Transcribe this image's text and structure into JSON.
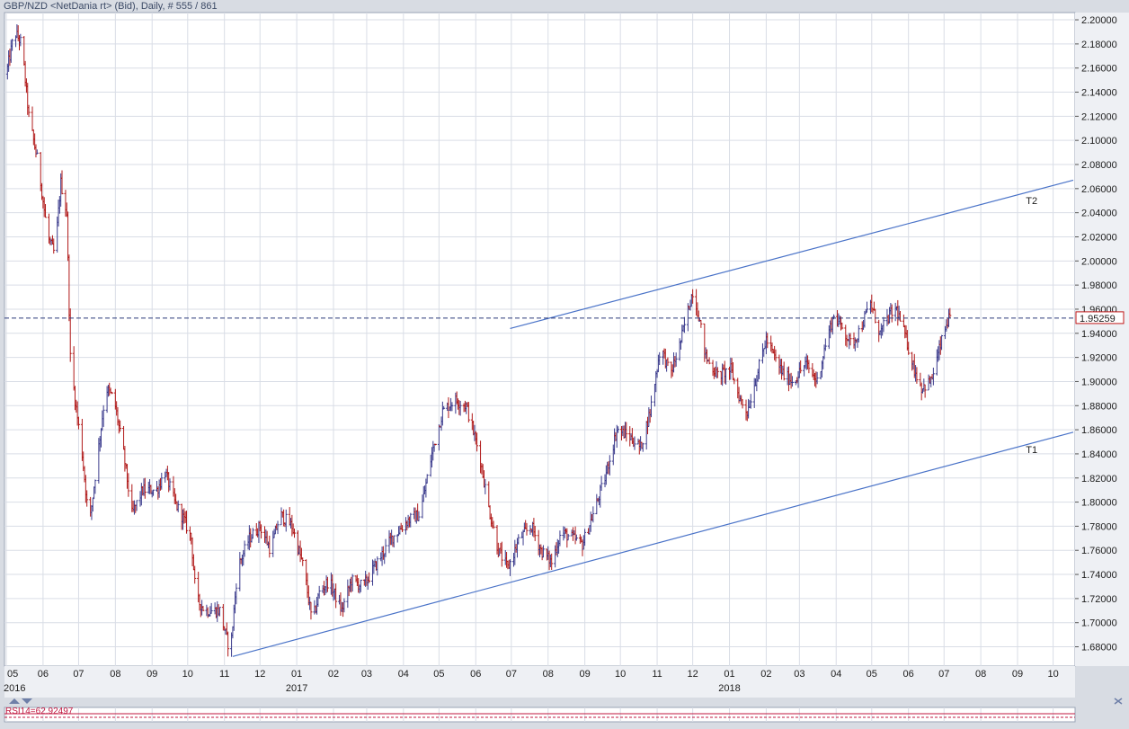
{
  "header": {
    "title": "GBP/NZD <NetDania rt> (Bid), Daily, # 555 / 861"
  },
  "colors": {
    "background": "#ffffff",
    "grid": "#d9dde6",
    "up_bar": "#3a3a8c",
    "down_bar": "#b01818",
    "trendline": "#4a73c8",
    "current_price_line": "#2b3a7a",
    "price_badge_border": "#c01818",
    "rsi_line": "#c01840",
    "axis_text": "#1c1c1c",
    "frame": "#9aa3b5"
  },
  "chart_data": {
    "type": "ohlc",
    "title": "GBP/NZD <NetDania rt> (Bid), Daily, # 555 / 861",
    "ylim": [
      1.664,
      2.206
    ],
    "x_range": [
      "2016-05-01",
      "2018-10-18"
    ],
    "grid": true,
    "y_ticks": [
      "1.68000",
      "1.70000",
      "1.72000",
      "1.74000",
      "1.76000",
      "1.78000",
      "1.80000",
      "1.82000",
      "1.84000",
      "1.86000",
      "1.88000",
      "1.90000",
      "1.92000",
      "1.94000",
      "1.96000",
      "1.98000",
      "2.00000",
      "2.02000",
      "2.04000",
      "2.06000",
      "2.08000",
      "2.10000",
      "2.12000",
      "2.14000",
      "2.16000",
      "2.18000",
      "2.20000"
    ],
    "x_month_ticks": [
      {
        "label": "05",
        "date": "2016-05-01"
      },
      {
        "label": "06",
        "date": "2016-06-01"
      },
      {
        "label": "07",
        "date": "2016-07-01"
      },
      {
        "label": "08",
        "date": "2016-08-01"
      },
      {
        "label": "09",
        "date": "2016-09-01"
      },
      {
        "label": "10",
        "date": "2016-10-01"
      },
      {
        "label": "11",
        "date": "2016-11-01"
      },
      {
        "label": "12",
        "date": "2016-12-01"
      },
      {
        "label": "01",
        "date": "2017-01-01"
      },
      {
        "label": "02",
        "date": "2017-02-01"
      },
      {
        "label": "03",
        "date": "2017-03-01"
      },
      {
        "label": "04",
        "date": "2017-04-01"
      },
      {
        "label": "05",
        "date": "2017-05-01"
      },
      {
        "label": "06",
        "date": "2017-06-01"
      },
      {
        "label": "07",
        "date": "2017-07-01"
      },
      {
        "label": "08",
        "date": "2017-08-01"
      },
      {
        "label": "09",
        "date": "2017-09-01"
      },
      {
        "label": "10",
        "date": "2017-10-01"
      },
      {
        "label": "11",
        "date": "2017-11-01"
      },
      {
        "label": "12",
        "date": "2017-12-01"
      },
      {
        "label": "01",
        "date": "2018-01-01"
      },
      {
        "label": "02",
        "date": "2018-02-01"
      },
      {
        "label": "03",
        "date": "2018-03-01"
      },
      {
        "label": "04",
        "date": "2018-04-01"
      },
      {
        "label": "05",
        "date": "2018-05-01"
      },
      {
        "label": "06",
        "date": "2018-06-01"
      },
      {
        "label": "07",
        "date": "2018-07-01"
      },
      {
        "label": "08",
        "date": "2018-08-01"
      },
      {
        "label": "09",
        "date": "2018-09-01"
      },
      {
        "label": "10",
        "date": "2018-10-01"
      }
    ],
    "x_year_labels": [
      {
        "label": "2016",
        "date": "2016-05-01"
      },
      {
        "label": "2017",
        "date": "2017-01-01"
      },
      {
        "label": "2018",
        "date": "2018-01-01"
      }
    ],
    "price_path": [
      [
        "2016-05-01",
        2.155
      ],
      [
        "2016-05-08",
        2.19
      ],
      [
        "2016-05-14",
        2.18
      ],
      [
        "2016-05-20",
        2.12
      ],
      [
        "2016-05-28",
        2.08
      ],
      [
        "2016-06-05",
        2.02
      ],
      [
        "2016-06-11",
        2.005
      ],
      [
        "2016-06-16",
        2.065
      ],
      [
        "2016-06-21",
        2.04
      ],
      [
        "2016-06-24",
        1.92
      ],
      [
        "2016-06-28",
        1.885
      ],
      [
        "2016-07-04",
        1.84
      ],
      [
        "2016-07-10",
        1.78
      ],
      [
        "2016-07-16",
        1.83
      ],
      [
        "2016-07-24",
        1.895
      ],
      [
        "2016-07-31",
        1.885
      ],
      [
        "2016-08-08",
        1.84
      ],
      [
        "2016-08-15",
        1.79
      ],
      [
        "2016-08-24",
        1.81
      ],
      [
        "2016-09-05",
        1.81
      ],
      [
        "2016-09-12",
        1.825
      ],
      [
        "2016-09-20",
        1.8
      ],
      [
        "2016-09-28",
        1.785
      ],
      [
        "2016-10-04",
        1.77
      ],
      [
        "2016-10-08",
        1.72
      ],
      [
        "2016-10-16",
        1.71
      ],
      [
        "2016-10-28",
        1.71
      ],
      [
        "2016-11-06",
        1.675
      ],
      [
        "2016-11-12",
        1.745
      ],
      [
        "2016-11-22",
        1.77
      ],
      [
        "2016-12-01",
        1.78
      ],
      [
        "2016-12-10",
        1.76
      ],
      [
        "2016-12-18",
        1.79
      ],
      [
        "2016-12-28",
        1.78
      ],
      [
        "2017-01-07",
        1.745
      ],
      [
        "2017-01-14",
        1.7
      ],
      [
        "2017-01-20",
        1.725
      ],
      [
        "2017-01-28",
        1.735
      ],
      [
        "2017-02-08",
        1.71
      ],
      [
        "2017-02-16",
        1.735
      ],
      [
        "2017-02-26",
        1.73
      ],
      [
        "2017-03-10",
        1.75
      ],
      [
        "2017-03-22",
        1.77
      ],
      [
        "2017-04-05",
        1.785
      ],
      [
        "2017-04-15",
        1.79
      ],
      [
        "2017-04-25",
        1.84
      ],
      [
        "2017-05-04",
        1.875
      ],
      [
        "2017-05-14",
        1.885
      ],
      [
        "2017-05-24",
        1.88
      ],
      [
        "2017-06-04",
        1.84
      ],
      [
        "2017-06-12",
        1.795
      ],
      [
        "2017-06-20",
        1.76
      ],
      [
        "2017-06-28",
        1.745
      ],
      [
        "2017-07-08",
        1.77
      ],
      [
        "2017-07-18",
        1.78
      ],
      [
        "2017-07-26",
        1.76
      ],
      [
        "2017-08-04",
        1.75
      ],
      [
        "2017-08-12",
        1.775
      ],
      [
        "2017-08-22",
        1.77
      ],
      [
        "2017-08-30",
        1.765
      ],
      [
        "2017-09-08",
        1.79
      ],
      [
        "2017-09-18",
        1.82
      ],
      [
        "2017-09-28",
        1.86
      ],
      [
        "2017-10-08",
        1.855
      ],
      [
        "2017-10-18",
        1.845
      ],
      [
        "2017-10-26",
        1.875
      ],
      [
        "2017-11-04",
        1.93
      ],
      [
        "2017-11-12",
        1.905
      ],
      [
        "2017-11-20",
        1.93
      ],
      [
        "2017-11-26",
        1.955
      ],
      [
        "2017-12-01",
        1.975
      ],
      [
        "2017-12-06",
        1.955
      ],
      [
        "2017-12-12",
        1.92
      ],
      [
        "2017-12-22",
        1.905
      ],
      [
        "2018-01-02",
        1.91
      ],
      [
        "2018-01-10",
        1.885
      ],
      [
        "2018-01-16",
        1.875
      ],
      [
        "2018-01-24",
        1.905
      ],
      [
        "2018-02-01",
        1.935
      ],
      [
        "2018-02-08",
        1.92
      ],
      [
        "2018-02-16",
        1.905
      ],
      [
        "2018-02-24",
        1.9
      ],
      [
        "2018-03-06",
        1.915
      ],
      [
        "2018-03-16",
        1.9
      ],
      [
        "2018-03-24",
        1.935
      ],
      [
        "2018-03-30",
        1.955
      ],
      [
        "2018-04-06",
        1.945
      ],
      [
        "2018-04-14",
        1.93
      ],
      [
        "2018-04-22",
        1.945
      ],
      [
        "2018-04-30",
        1.965
      ],
      [
        "2018-05-08",
        1.94
      ],
      [
        "2018-05-16",
        1.955
      ],
      [
        "2018-05-22",
        1.96
      ],
      [
        "2018-05-30",
        1.935
      ],
      [
        "2018-06-06",
        1.91
      ],
      [
        "2018-06-12",
        1.895
      ],
      [
        "2018-06-20",
        1.9
      ],
      [
        "2018-06-28",
        1.93
      ],
      [
        "2018-07-04",
        1.95
      ],
      [
        "2018-07-06",
        1.9526
      ]
    ],
    "current_price": {
      "value": 1.95259,
      "label": "1.95259"
    },
    "trendlines": [
      {
        "name": "T1",
        "label": "T1",
        "points": [
          [
            "2016-11-08",
            1.672
          ],
          [
            "2018-10-18",
            1.858
          ]
        ],
        "label_at": [
          "2018-09-08",
          1.8435
        ]
      },
      {
        "name": "T2",
        "label": "T2",
        "points": [
          [
            "2017-06-30",
            1.944
          ],
          [
            "2018-10-18",
            2.067
          ]
        ],
        "label_at": [
          "2018-09-08",
          2.05
        ]
      }
    ],
    "rsi": {
      "label": "RSI14=62.92497",
      "value": 62.92497
    }
  }
}
